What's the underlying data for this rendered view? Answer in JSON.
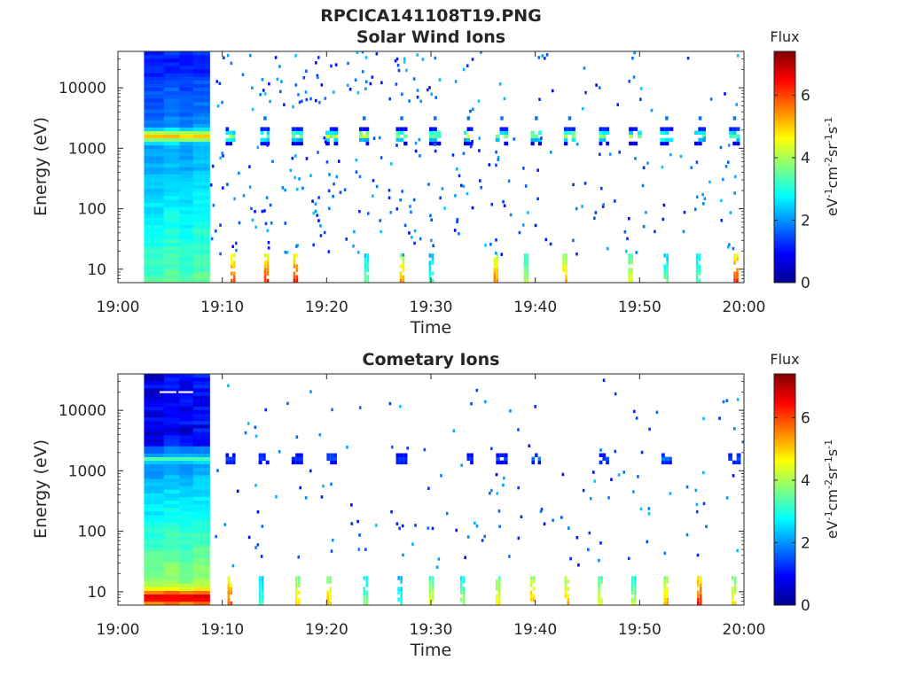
{
  "figure": {
    "title": "RPCICA141108T19.PNG"
  },
  "chart_data": [
    {
      "type": "heatmap",
      "title": "Solar Wind Ions",
      "xlabel": "Time",
      "ylabel": "Energy (eV)",
      "x_range": [
        "19:00",
        "20:00"
      ],
      "x_ticks": [
        "19:00",
        "19:10",
        "19:20",
        "19:30",
        "19:40",
        "19:50",
        "20:00"
      ],
      "y_scale": "log",
      "y_range": [
        6,
        40000
      ],
      "y_ticks": [
        10,
        100,
        1000,
        10000
      ],
      "y_tick_labels": [
        "10",
        "100",
        "1000",
        "10000"
      ],
      "colorbar": {
        "title": "Flux",
        "label": "eV-1cm-2sr-1s-1",
        "range": [
          0,
          7.4
        ],
        "ticks": [
          0,
          2,
          4,
          6
        ],
        "colormap": "jet"
      },
      "dense_block": {
        "start_min": 2.5,
        "end_min": 8.8,
        "peak_energy_ev": 1600,
        "peak_flux": 5.0
      },
      "burst_times_min": [
        10.8,
        14.1,
        17.2,
        20.5,
        23.6,
        27.2,
        30.4,
        33.6,
        36.8,
        40.1,
        43.3,
        46.6,
        49.6,
        52.6,
        55.8,
        59.1
      ],
      "burst_energy_ev": 1600,
      "burst_peak_flux": 4.5,
      "low_energy_events_min": [
        10.8,
        14.0,
        16.8,
        23.6,
        27.0,
        29.8,
        36.0,
        38.9,
        42.6,
        48.9,
        52.3,
        55.4,
        59.0
      ]
    },
    {
      "type": "heatmap",
      "title": "Cometary Ions",
      "xlabel": "Time",
      "ylabel": "Energy (eV)",
      "x_range": [
        "19:00",
        "20:00"
      ],
      "x_ticks": [
        "19:00",
        "19:10",
        "19:20",
        "19:30",
        "19:40",
        "19:50",
        "20:00"
      ],
      "y_scale": "log",
      "y_range": [
        6,
        40000
      ],
      "y_ticks": [
        10,
        100,
        1000,
        10000
      ],
      "y_tick_labels": [
        "10",
        "100",
        "1000",
        "10000"
      ],
      "colorbar": {
        "title": "Flux",
        "label": "eV-1cm-2sr-1s-1",
        "range": [
          0,
          7.4
        ],
        "ticks": [
          0,
          2,
          4,
          6
        ],
        "colormap": "jet"
      },
      "dense_block": {
        "start_min": 2.5,
        "end_min": 8.8,
        "peak_energy_ev": 8,
        "peak_flux": 5.5
      },
      "burst_times_min": [
        10.8,
        14.0,
        17.2,
        20.5,
        27.2,
        33.6,
        36.8,
        40.1,
        46.6,
        52.6,
        59.1
      ],
      "burst_energy_ev": 1600,
      "burst_peak_flux": 1.8,
      "low_energy_events_min": [
        10.5,
        13.5,
        17.0,
        20.0,
        23.5,
        26.8,
        29.8,
        32.8,
        36.2,
        39.5,
        42.8,
        46.0,
        49.2,
        52.3,
        55.5,
        58.8
      ]
    }
  ]
}
